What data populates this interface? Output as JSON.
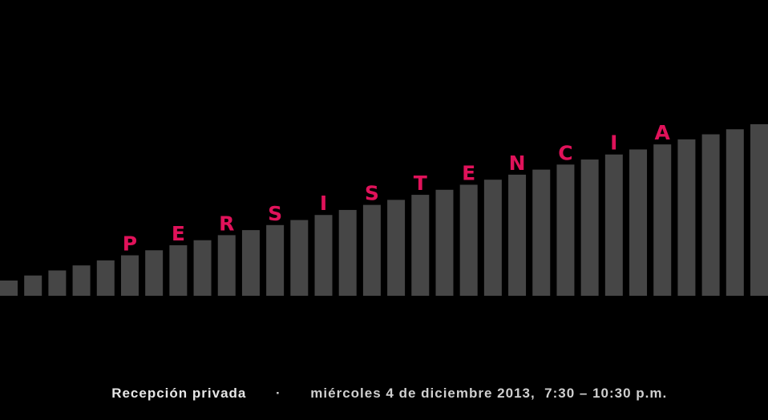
{
  "letters": [
    "P",
    "E",
    "R",
    "S",
    "I",
    "S",
    "T",
    "E",
    "N",
    "C",
    "I",
    "A"
  ],
  "footer": {
    "reception": "Recepción privada",
    "separator": "·",
    "details": "miércoles 4 de diciembre 2013,  7:30 – 10:30 p.m."
  }
}
